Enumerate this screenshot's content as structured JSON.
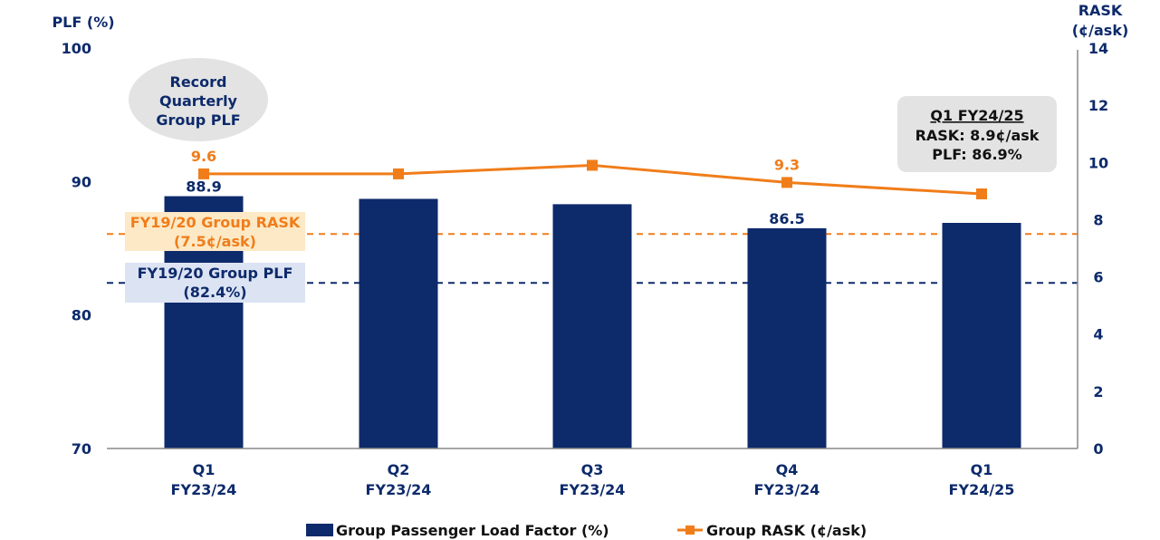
{
  "chart_data": {
    "type": "bar+line",
    "categories": [
      [
        "Q1",
        "FY23/24"
      ],
      [
        "Q2",
        "FY23/24"
      ],
      [
        "Q3",
        "FY23/24"
      ],
      [
        "Q4",
        "FY23/24"
      ],
      [
        "Q1",
        "FY24/25"
      ]
    ],
    "left_axis": {
      "label": "PLF (%)",
      "min": 70,
      "max": 100,
      "ticks": [
        "70",
        "80",
        "90",
        "100"
      ]
    },
    "right_axis": {
      "label": [
        "RASK",
        "(¢/ask)"
      ],
      "min": 0,
      "max": 14,
      "ticks": [
        "0",
        "2",
        "4",
        "6",
        "8",
        "10",
        "12",
        "14"
      ]
    },
    "series": [
      {
        "name": "Group Passenger Load Factor (%)",
        "kind": "bar",
        "axis": "left",
        "color": "#0d2a6b",
        "values": [
          88.9,
          88.7,
          88.3,
          86.5,
          86.9
        ],
        "data_labels": [
          "88.9",
          "",
          "",
          "86.5",
          ""
        ]
      },
      {
        "name": "Group RASK (¢/ask)",
        "kind": "line",
        "axis": "right",
        "color": "#f07d1a",
        "values": [
          9.6,
          9.6,
          9.9,
          9.3,
          8.9
        ],
        "data_labels": [
          "9.6",
          "",
          "",
          "9.3",
          ""
        ]
      }
    ],
    "reference_lines": [
      {
        "label": [
          "FY19/20 Group RASK",
          "(7.5¢/ask)"
        ],
        "axis": "right",
        "value": 7.5,
        "color": "#f07d1a",
        "style": "dashed",
        "box_color": "#fde9c6"
      },
      {
        "label": [
          "FY19/20 Group PLF",
          "(82.4%)"
        ],
        "axis": "left",
        "value": 82.4,
        "color": "#0d2a6b",
        "style": "dashed",
        "box_color": "#dce3f3"
      }
    ],
    "annotations": [
      {
        "text": [
          "Record",
          "Quarterly",
          "Group PLF"
        ],
        "shape": "ellipse",
        "fill": "#e3e3e3",
        "color": "#0d2a6b"
      },
      {
        "text": [
          "Q1 FY24/25",
          "RASK: 8.9¢/ask",
          "PLF: 86.9%"
        ],
        "shape": "rounded-box",
        "fill": "#e3e3e3",
        "color": "#111111"
      }
    ],
    "legend": {
      "position": "bottom"
    },
    "grid": false
  }
}
